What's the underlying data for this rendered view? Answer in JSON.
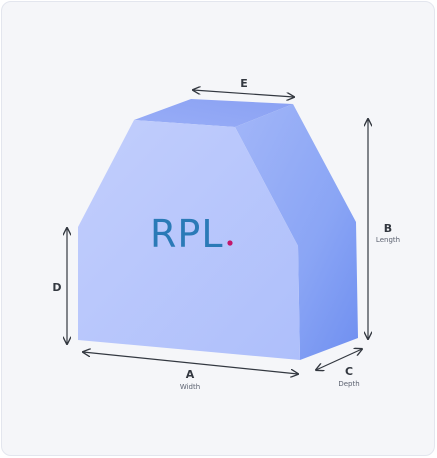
{
  "dimensions": {
    "a": {
      "letter": "A",
      "label": "Width"
    },
    "b": {
      "letter": "B",
      "label": "Length"
    },
    "c": {
      "letter": "C",
      "label": "Depth"
    },
    "d": {
      "letter": "D"
    },
    "e": {
      "letter": "E"
    }
  },
  "logo": {
    "text": "RPL",
    "dot": ".",
    "text_color": "#2a7ab7",
    "dot_color": "#c2166b"
  },
  "colors": {
    "front_face": "#b4c3fb",
    "top_face": "#8ea4f5",
    "side_face": "#7f9cf3",
    "arrow": "#333840"
  }
}
